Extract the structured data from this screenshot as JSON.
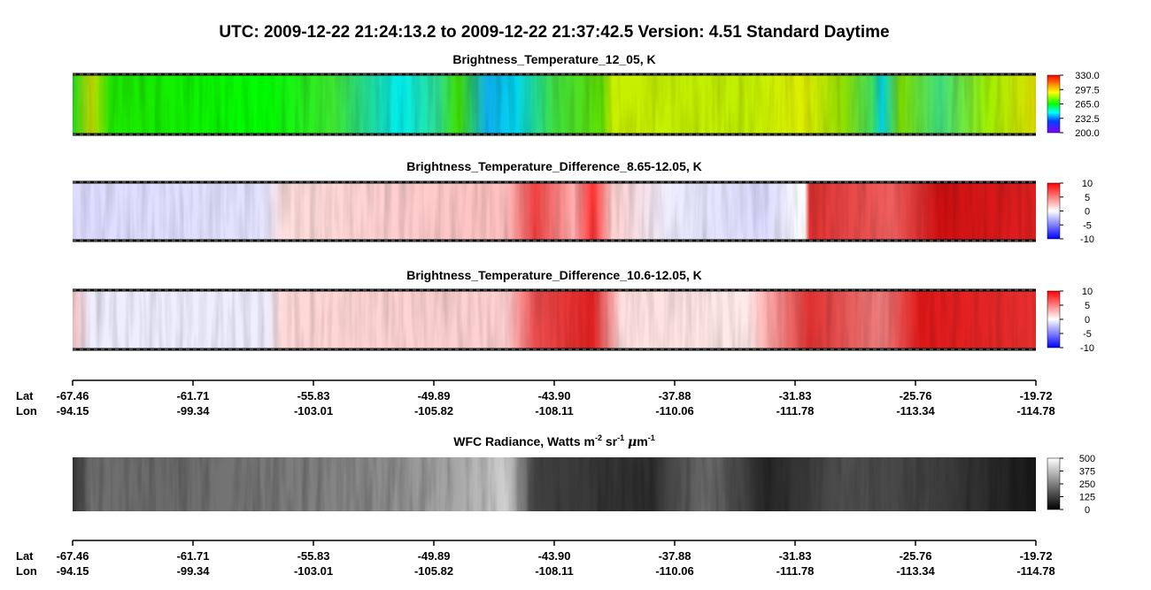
{
  "header": {
    "title": "UTC:  2009-12-22   21:24:13.2  to  2009-12-22   21:37:42.5    Version: 4.51  Standard Daytime"
  },
  "panels": [
    {
      "title": "Brightness_Temperature_12_05, K",
      "colorbar": [
        "330.0",
        "297.5",
        "265.0",
        "232.5",
        "200.0"
      ]
    },
    {
      "title": "Brightness_Temperature_Difference_8.65-12.05, K",
      "colorbar": [
        "10",
        "5",
        "0",
        "-5",
        "-10"
      ]
    },
    {
      "title": "Brightness_Temperature_Difference_10.6-12.05, K",
      "colorbar": [
        "10",
        "5",
        "0",
        "-5",
        "-10"
      ]
    },
    {
      "title": [
        "WFC Radiance, Watts m",
        "-2",
        " sr",
        "-1",
        " ",
        "μ",
        "m",
        "-1"
      ],
      "colorbar": [
        "500",
        "375",
        "250",
        "125",
        "0"
      ]
    }
  ],
  "axes": [
    {
      "lat_label": "Lat",
      "lon_label": "Lon",
      "lat": [
        "-67.46",
        "-61.71",
        "-55.83",
        "-49.89",
        "-43.90",
        "-37.88",
        "-31.83",
        "-25.76",
        "-19.72"
      ],
      "lon": [
        "-94.15",
        "-99.34",
        "-103.01",
        "-105.82",
        "-108.11",
        "-110.06",
        "-111.78",
        "-113.34",
        "-114.78"
      ]
    },
    {
      "lat_label": "Lat",
      "lon_label": "Lon",
      "lat": [
        "-67.46",
        "-61.71",
        "-55.83",
        "-49.89",
        "-43.90",
        "-37.88",
        "-31.83",
        "-25.76",
        "-19.72"
      ],
      "lon": [
        "-94.15",
        "-99.34",
        "-103.01",
        "-105.82",
        "-108.11",
        "-110.06",
        "-111.78",
        "-113.34",
        "-114.78"
      ]
    }
  ]
}
